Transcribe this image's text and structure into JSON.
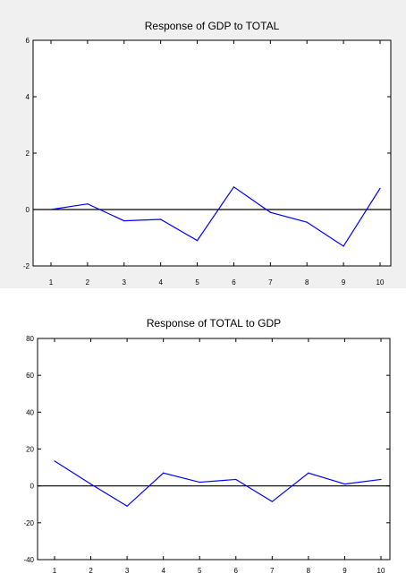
{
  "chart_data": [
    {
      "type": "line",
      "title": "Response of GDP to TOTAL",
      "xlabel": "",
      "ylabel": "",
      "x": [
        1,
        2,
        3,
        4,
        5,
        6,
        7,
        8,
        9,
        10
      ],
      "xticks": [
        "1",
        "2",
        "3",
        "4",
        "5",
        "6",
        "7",
        "8",
        "9",
        "10"
      ],
      "ylim": [
        -2,
        6
      ],
      "yticks": [
        -2,
        0,
        2,
        4,
        6
      ],
      "ytick_labels": [
        "-2",
        "0",
        "2",
        "4",
        "6"
      ],
      "series": [
        {
          "values": [
            0.0,
            0.2,
            -0.4,
            -0.35,
            -1.1,
            0.8,
            -0.1,
            -0.45,
            -1.3,
            0.75
          ]
        }
      ],
      "zero_line": true,
      "grid": false,
      "line_color": "#0000ff",
      "background_color": "#f0f0f0"
    },
    {
      "type": "line",
      "title": "Response of TOTAL to GDP",
      "xlabel": "",
      "ylabel": "",
      "x": [
        1,
        2,
        3,
        4,
        5,
        6,
        7,
        8,
        9,
        10
      ],
      "xticks": [
        "1",
        "2",
        "3",
        "4",
        "5",
        "6",
        "7",
        "8",
        "9",
        "10"
      ],
      "ylim": [
        -40,
        80
      ],
      "yticks": [
        -40,
        -20,
        0,
        20,
        40,
        60,
        80
      ],
      "ytick_labels": [
        "-40",
        "-20",
        "0",
        "20",
        "40",
        "60",
        "80"
      ],
      "series": [
        {
          "values": [
            13.5,
            1.0,
            -11.0,
            7.0,
            2.0,
            3.5,
            -8.5,
            7.0,
            1.0,
            3.5
          ]
        }
      ],
      "zero_line": true,
      "grid": false,
      "line_color": "#0000ff",
      "background_color": "#ffffff"
    }
  ]
}
